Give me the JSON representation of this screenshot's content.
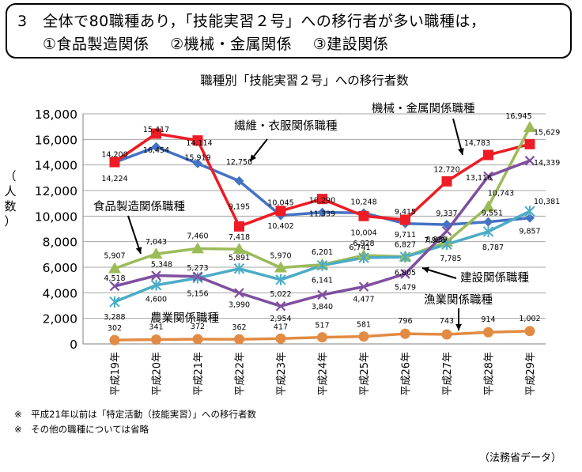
{
  "headline": {
    "line1": "3　全体で80職種あり，「技能実習２号」への移行者が多い職種は，",
    "items": [
      "①食品製造関係",
      "②機械・金属関係",
      "③建設関係"
    ]
  },
  "notes": [
    "※　平成21年以前は「特定活動（技能実習）」への移行者数",
    "※　その他の職種については省略"
  ],
  "source": "（法務省データ）",
  "chart_data": {
    "type": "line",
    "title": "職種別「技能実習２号」への移行者数",
    "ylabel": "（人数）",
    "xlabel": "",
    "ylim": [
      0,
      18000
    ],
    "yticks": [
      0,
      2000,
      4000,
      6000,
      8000,
      10000,
      12000,
      14000,
      16000,
      18000
    ],
    "ytick_labels": [
      "0",
      "2,000",
      "4,000",
      "6,000",
      "8,000",
      "10,000",
      "12,000",
      "14,000",
      "16,000",
      "18,000"
    ],
    "grid": true,
    "categories": [
      "平成19年",
      "平成20年",
      "平成21年",
      "平成22年",
      "平成23年",
      "平成24年",
      "平成25年",
      "平成26年",
      "平成27年",
      "平成28年",
      "平成29年"
    ],
    "series": [
      {
        "name": "繊維・衣服関係職種",
        "color": "#4472c4",
        "marker": "diamond",
        "values": [
          14200,
          15417,
          14114,
          12750,
          10045,
          10290,
          10248,
          9415,
          9337,
          9551,
          9857
        ],
        "labels": [
          "14,200",
          "15,417",
          "14,114",
          "12,750",
          "10,045",
          "10,290",
          "10,248",
          "9,415",
          "9,337",
          "9,551",
          "9,857"
        ]
      },
      {
        "name": "機械・金属関係職種",
        "color": "#ee1c25",
        "marker": "square",
        "values": [
          14224,
          16454,
          15919,
          9195,
          10402,
          11339,
          10004,
          9711,
          12720,
          14783,
          15629
        ],
        "labels": [
          "14,224",
          "16,454",
          "15,919",
          "9,195",
          "10,402",
          "11,339",
          "10,004",
          "9,711",
          "12,720",
          "14,783",
          "15,629"
        ]
      },
      {
        "name": "食品製造関係職種",
        "color": "#9bbb59",
        "marker": "triangle",
        "values": [
          5907,
          7043,
          7460,
          7418,
          5970,
          6201,
          6928,
          6827,
          7988,
          10743,
          16945
        ],
        "labels": [
          "5,907",
          "7,043",
          "7,460",
          "7,418",
          "5,970",
          "6,201",
          "6,928",
          "6,827",
          "7,988",
          "10,743",
          "16,945"
        ]
      },
      {
        "name": "農業関係職種",
        "color": "#4bacc6",
        "marker": "asterisk",
        "values": [
          3288,
          4600,
          5156,
          5891,
          5022,
          6141,
          6741,
          6805,
          7785,
          8787,
          10381
        ],
        "labels": [
          "3,288",
          "4,600",
          "5,156",
          "5,891",
          "5,022",
          "6,141",
          "6,741",
          "6,805",
          "7,785",
          "8,787",
          "10,381"
        ]
      },
      {
        "name": "建設関係職種",
        "color": "#7f4f9f",
        "marker": "cross",
        "values": [
          4518,
          5348,
          5273,
          3990,
          2954,
          3840,
          4477,
          5479,
          8839,
          13116,
          14339
        ],
        "labels": [
          "4,518",
          "5,348",
          "5,273",
          "3,990",
          "2,954",
          "3,840",
          "4,477",
          "5,479",
          "8,839",
          "13,116",
          "14,339"
        ]
      },
      {
        "name": "漁業関係職種",
        "color": "#e28b44",
        "marker": "circle",
        "values": [
          302,
          341,
          372,
          362,
          417,
          517,
          581,
          796,
          743,
          914,
          1002
        ],
        "labels": [
          "302",
          "341",
          "372",
          "362",
          "417",
          "517",
          "581",
          "796",
          "743",
          "914",
          "1,002"
        ]
      }
    ]
  }
}
